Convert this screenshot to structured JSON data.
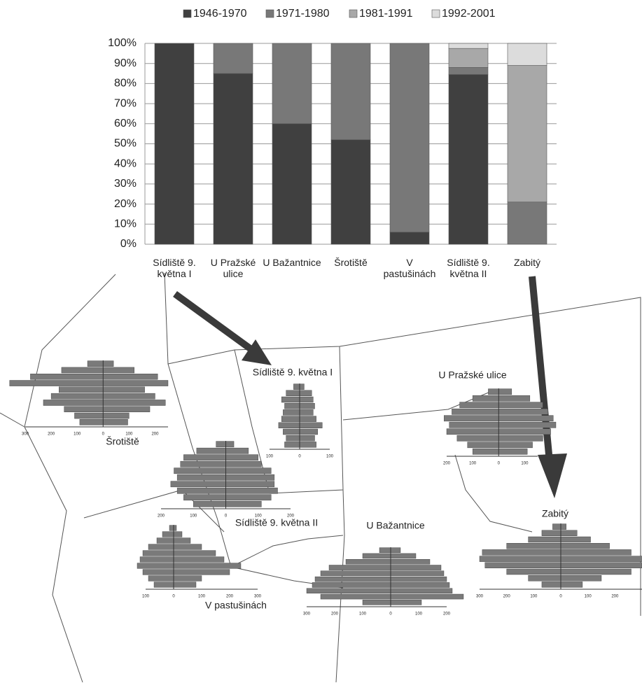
{
  "chart_data": [
    {
      "type": "bar",
      "stacked": true,
      "categories": [
        "Sídliště 9. května I",
        "U Pražské ulice",
        "U Bažantnice",
        "Šrotiště",
        "V pastušinách",
        "Sídliště 9. května II",
        "Zabitý"
      ],
      "series": [
        {
          "name": "1946-1970",
          "color": "#404040",
          "values": [
            100,
            85,
            60,
            52,
            6,
            84.5,
            0
          ]
        },
        {
          "name": "1971-1980",
          "color": "#787878",
          "values": [
            0,
            15,
            40,
            48,
            94,
            3.5,
            21
          ]
        },
        {
          "name": "1981-1991",
          "color": "#a8a8a8",
          "values": [
            0,
            0,
            0,
            0,
            0,
            9.5,
            68
          ]
        },
        {
          "name": "1992-2001",
          "color": "#dcdcdc",
          "values": [
            0,
            0,
            0,
            0,
            0,
            2.5,
            11
          ]
        }
      ],
      "ylim": [
        0,
        100
      ],
      "yticks": [
        {
          "value": 0,
          "label": "0%"
        },
        {
          "value": 10,
          "label": "10%"
        },
        {
          "value": 20,
          "label": "20%"
        },
        {
          "value": 30,
          "label": "30%"
        },
        {
          "value": 40,
          "label": "40%"
        },
        {
          "value": 50,
          "label": "50%"
        },
        {
          "value": 60,
          "label": "60%"
        },
        {
          "value": 70,
          "label": "70%"
        },
        {
          "value": 80,
          "label": "80%"
        },
        {
          "value": 90,
          "label": "90%"
        },
        {
          "value": 100,
          "label": "100%"
        }
      ],
      "grid": true,
      "legend": "top"
    },
    {
      "type": "pyramid",
      "title": "Šrotiště",
      "xlim": [
        -300,
        250
      ],
      "xticks": [
        {
          "value": -300,
          "label": "300"
        },
        {
          "value": -200,
          "label": "200"
        },
        {
          "value": -100,
          "label": "100"
        },
        0,
        100,
        200
      ],
      "series": [
        {
          "color": "#7a7a7a",
          "values": [
            90,
            110,
            150,
            230,
            200,
            170,
            360,
            280,
            160,
            60
          ]
        },
        {
          "color": "#7a7a7a",
          "values": [
            95,
            100,
            180,
            240,
            200,
            160,
            250,
            210,
            120,
            40
          ]
        }
      ]
    },
    {
      "type": "pyramid",
      "title": "Sídliště 9. května I",
      "xlim": [
        -100,
        100
      ],
      "xticks": [
        {
          "value": -100,
          "label": "100"
        },
        0,
        100
      ],
      "series": [
        {
          "color": "#7a7a7a",
          "values": [
            50,
            45,
            55,
            70,
            60,
            55,
            50,
            60,
            45,
            20
          ]
        },
        {
          "color": "#7a7a7a",
          "values": [
            55,
            50,
            60,
            75,
            55,
            45,
            50,
            45,
            40,
            15
          ]
        }
      ]
    },
    {
      "type": "pyramid",
      "title": "U Pražské ulice",
      "xlim": [
        -200,
        150
      ],
      "xticks": [
        {
          "value": -200,
          "label": "200"
        },
        {
          "value": -100,
          "label": "100"
        },
        0,
        100
      ],
      "series": [
        {
          "color": "#7a7a7a",
          "values": [
            100,
            120,
            160,
            200,
            190,
            210,
            180,
            150,
            100,
            40
          ]
        },
        {
          "color": "#7a7a7a",
          "values": [
            110,
            130,
            170,
            200,
            220,
            210,
            190,
            170,
            120,
            50
          ]
        }
      ]
    },
    {
      "type": "pyramid",
      "title": "Sídliště 9. května II",
      "xlim": [
        -200,
        200
      ],
      "xticks": [
        {
          "value": -200,
          "label": "200"
        },
        {
          "value": -100,
          "label": "100"
        },
        0,
        100,
        200
      ],
      "series": [
        {
          "color": "#7a7a7a",
          "values": [
            100,
            130,
            150,
            170,
            150,
            160,
            140,
            130,
            90,
            30
          ]
        },
        {
          "color": "#7a7a7a",
          "values": [
            110,
            140,
            160,
            150,
            150,
            140,
            110,
            100,
            70,
            25
          ]
        }
      ]
    },
    {
      "type": "pyramid",
      "title": "U Bažantnice",
      "xlim": [
        -300,
        200
      ],
      "xticks": [
        {
          "value": -300,
          "label": "300"
        },
        {
          "value": -200,
          "label": "200"
        },
        {
          "value": -100,
          "label": "100"
        },
        0,
        100,
        200
      ],
      "series": [
        {
          "color": "#7a7a7a",
          "values": [
            100,
            250,
            300,
            280,
            270,
            250,
            220,
            160,
            100,
            40
          ]
        },
        {
          "color": "#7a7a7a",
          "values": [
            110,
            260,
            220,
            210,
            200,
            190,
            180,
            140,
            90,
            35
          ]
        }
      ]
    },
    {
      "type": "pyramid",
      "title": "Zabitý",
      "xlim": [
        -300,
        300
      ],
      "xticks": [
        {
          "value": -300,
          "label": "300"
        },
        {
          "value": -200,
          "label": "200"
        },
        {
          "value": -100,
          "label": "100"
        },
        0,
        100,
        200
      ],
      "series": [
        {
          "color": "#7a7a7a",
          "values": [
            70,
            120,
            200,
            280,
            300,
            290,
            200,
            120,
            70,
            30
          ]
        },
        {
          "color": "#7a7a7a",
          "values": [
            80,
            150,
            260,
            300,
            320,
            260,
            180,
            110,
            60,
            20
          ]
        }
      ]
    },
    {
      "type": "pyramid",
      "title": "V pastušinách",
      "xlim": [
        -100,
        300
      ],
      "xticks": [
        {
          "value": -100,
          "label": "100"
        },
        0,
        100,
        200,
        300
      ],
      "series": [
        {
          "color": "#7a7a7a",
          "values": [
            70,
            90,
            110,
            130,
            120,
            110,
            90,
            60,
            40,
            15
          ]
        },
        {
          "color": "#7a7a7a",
          "values": [
            80,
            100,
            200,
            240,
            180,
            150,
            100,
            60,
            30,
            10
          ]
        }
      ]
    }
  ]
}
